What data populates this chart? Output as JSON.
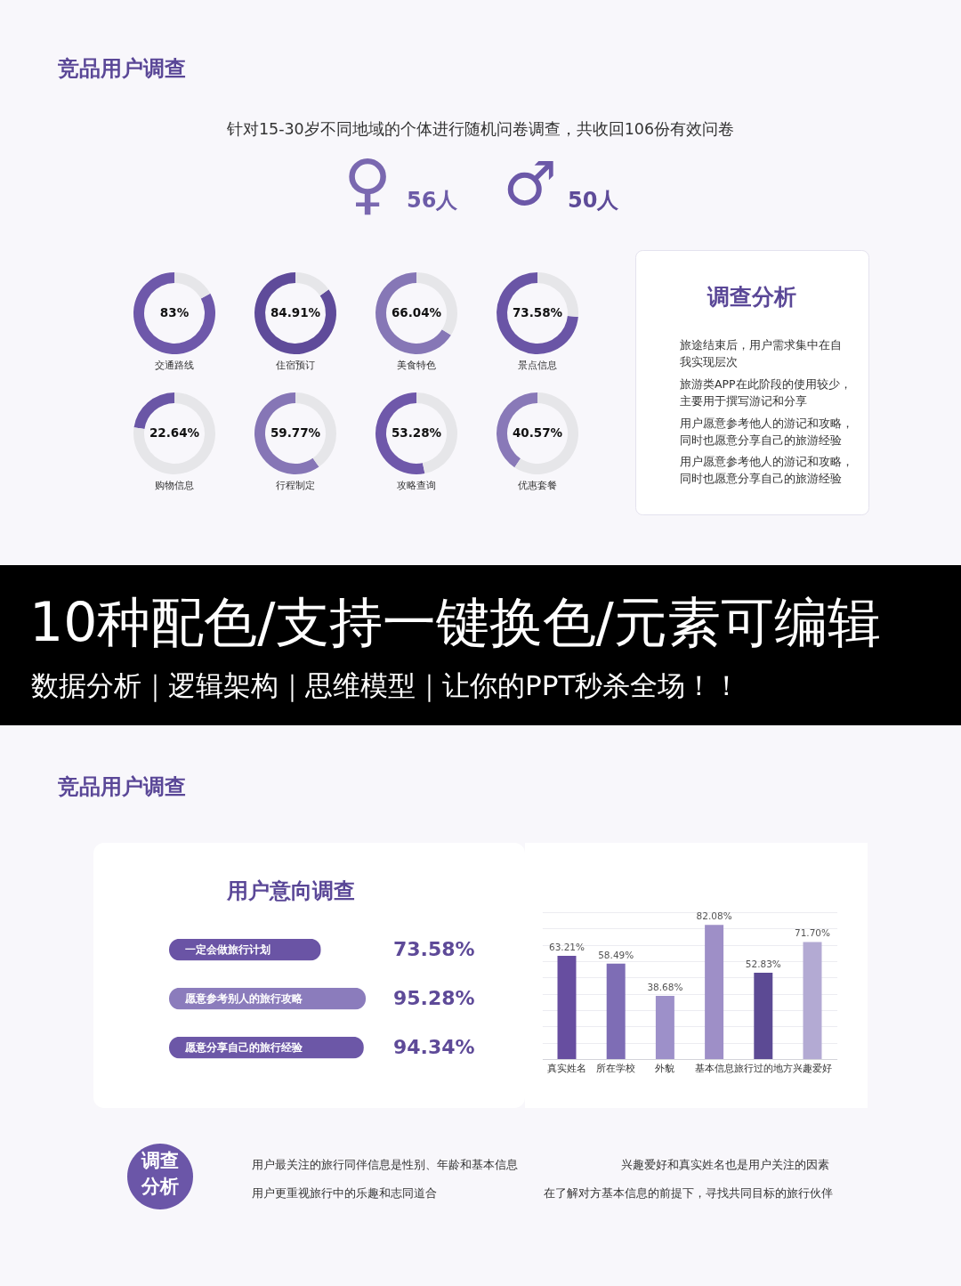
{
  "chart_data": [
    {
      "type": "other",
      "title": "竞品用户调查",
      "subtitle": "针对15-30岁不同地域的个体进行随机问卷调查，共收回106份有效问卷",
      "annotations": [
        "♀",
        "56人",
        "♂",
        "50人"
      ]
    },
    {
      "type": "donut",
      "title": "交通路线",
      "categories": [
        null,
        null
      ],
      "values": [
        83,
        17
      ],
      "colors": [
        "#6e58aa",
        "#e6e6e9"
      ],
      "value_labels": [
        "83%",
        null
      ]
    },
    {
      "type": "donut",
      "title": "住宿预订",
      "categories": [
        null,
        null
      ],
      "values": [
        84.91,
        15.09
      ],
      "colors": [
        "#5f4b9a",
        "#e6e6e9"
      ],
      "value_labels": [
        "84.91%",
        null
      ]
    },
    {
      "type": "donut",
      "title": "美食特色",
      "categories": [
        null,
        null
      ],
      "values": [
        66.04,
        33.96
      ],
      "colors": [
        "#8677b6",
        "#e6e6e9"
      ],
      "value_labels": [
        "66.04%",
        null
      ]
    },
    {
      "type": "donut",
      "title": "景点信息",
      "categories": [
        null,
        null
      ],
      "values": [
        73.58,
        26.42
      ],
      "colors": [
        "#6a55a6",
        "#e6e6e9"
      ],
      "value_labels": [
        "73.58%",
        null
      ]
    },
    {
      "type": "donut",
      "title": "购物信息",
      "categories": [
        null,
        null
      ],
      "values": [
        22.64,
        77.36
      ],
      "colors": [
        "#6a56a6",
        "#e6e6e9"
      ],
      "value_labels": [
        "22.64%",
        null
      ]
    },
    {
      "type": "donut",
      "title": "行程制定",
      "categories": [
        null,
        null
      ],
      "values": [
        59.77,
        40.23
      ],
      "colors": [
        "#8676b6",
        "#e6e6e9"
      ],
      "value_labels": [
        "59.77%",
        null
      ]
    },
    {
      "type": "donut",
      "title": "攻略查询",
      "categories": [
        null,
        null
      ],
      "values": [
        53.28,
        46.72
      ],
      "colors": [
        "#6f58aa",
        "#e6e6e9"
      ],
      "value_labels": [
        "53.28%",
        null
      ]
    },
    {
      "type": "donut",
      "title": "优惠套餐",
      "categories": [
        null,
        null
      ],
      "values": [
        40.57,
        59.43
      ],
      "colors": [
        "#8979b8",
        "#e6e6e9"
      ],
      "value_labels": [
        "40.57%",
        null
      ]
    },
    {
      "type": "other",
      "title": "调查分析",
      "annotations": [
        "旅途结束后，用户需求集中在自我实现层次",
        "旅游类APP在此阶段的使用较少，主要用于撰写游记和分享",
        "用户愿意参考他人的游记和攻略，同时也愿意分享自己的旅游经验",
        "用户愿意参考他人的游记和攻略，同时也愿意分享自己的旅游经验"
      ]
    },
    {
      "type": "other",
      "title": "10种配色/支持一键换色/元素可编辑",
      "subtitle": "数据分析｜逻辑架构｜思维模型｜让你的PPT秒杀全场！！"
    },
    {
      "type": "other",
      "title": "竞品用户调查"
    },
    {
      "type": "bar",
      "orientation": "horizontal",
      "title": "用户意向调查",
      "categories": [
        "一定会做旅行计划",
        "愿意参考别人的旅行攻略",
        "愿意分享自己的旅行经验"
      ],
      "values": [
        73.58,
        95.28,
        94.34
      ],
      "colors": [
        "#6a54a5",
        "#8b7cbc",
        "#6c57a7"
      ],
      "value_labels": [
        "73.58%",
        "95.28%",
        "94.34%"
      ],
      "tick_labels": "y"
    },
    {
      "type": "bar",
      "categories": [
        "真实姓名",
        "所在学校",
        "外貌",
        "基本信息",
        "旅行过的地方",
        "兴趣爱好"
      ],
      "values": [
        63.21,
        58.49,
        38.68,
        82.08,
        52.83,
        71.7
      ],
      "colors": [
        "#674ea0",
        "#7e6db5",
        "#9d90c9",
        "#9e8fc7",
        "#5c4a94",
        "#b3aad3"
      ],
      "value_labels": [
        "63.21%",
        "58.49%",
        "38.68%",
        "82.08%",
        "52.83%",
        "71.70%"
      ],
      "yticks": [
        {
          "value": 10,
          "label": null
        },
        {
          "value": 20,
          "label": null
        },
        {
          "value": 30,
          "label": null
        },
        {
          "value": 40,
          "label": null
        },
        {
          "value": 50,
          "label": null
        },
        {
          "value": 60,
          "label": null
        },
        {
          "value": 70,
          "label": null
        },
        {
          "value": 80,
          "label": null
        },
        {
          "value": 90,
          "label": null
        }
      ],
      "grid": "y",
      "tick_labels": "x"
    },
    {
      "type": "other",
      "title": "调查分析",
      "annotations": [
        "用户最关注的旅行同伴信息是性别、年龄和基本信息",
        "兴趣爱好和真实姓名也是用户关注的因素",
        "用户更重视旅行中的乐趣和志同道合",
        "在了解对方基本信息的前提下，寻找共同目标的旅行伙伴"
      ]
    }
  ]
}
